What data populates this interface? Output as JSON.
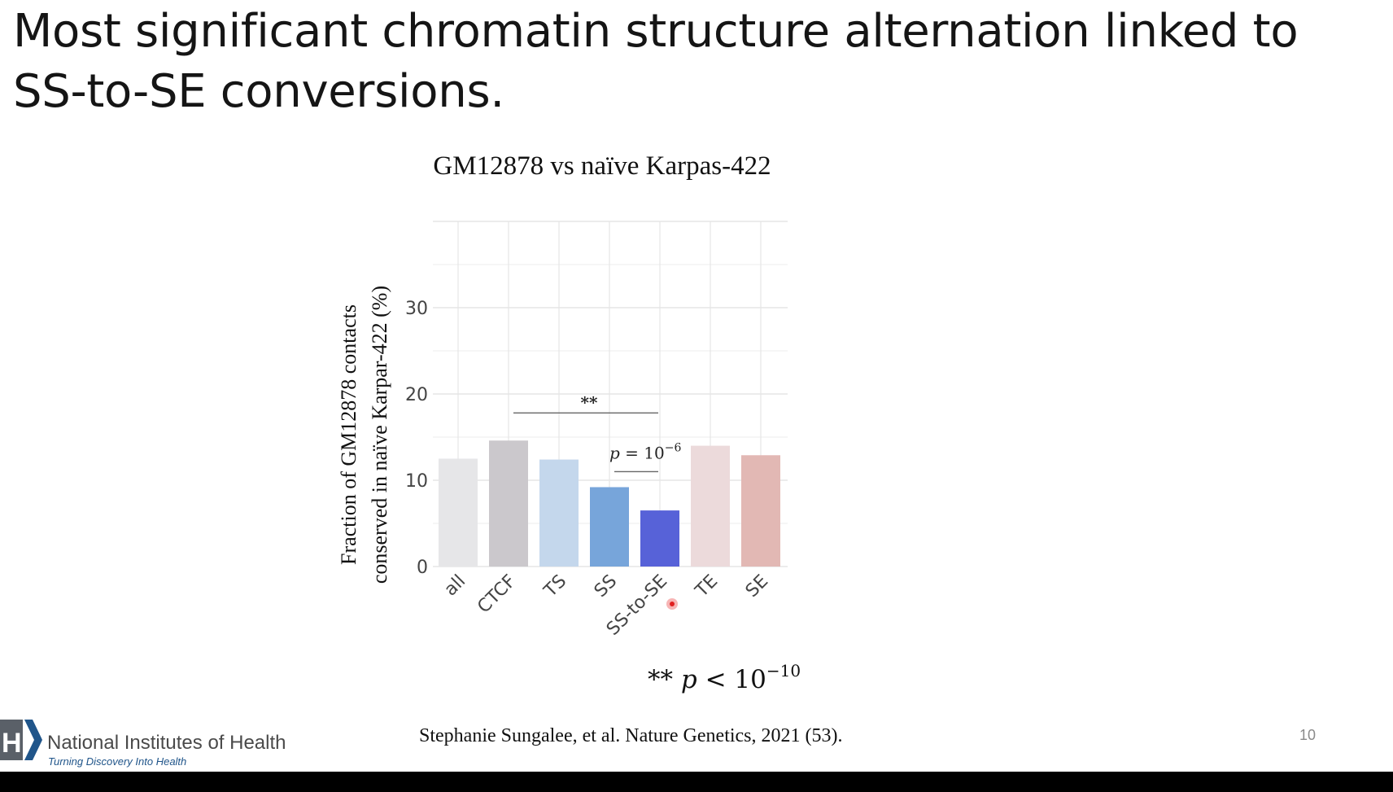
{
  "slide": {
    "title": "Most significant chromatin structure alternation linked to SS-to-SE conversions.",
    "page_number": "10",
    "citation": "Stephanie Sungalee, et al. Nature Genetics, 2021 (53).",
    "footnote": {
      "stars": "**",
      "p": "p",
      "rel": "<",
      "value": "10",
      "exponent": "−10"
    }
  },
  "logo": {
    "letter": "H",
    "name": "National Institutes of Health",
    "tagline": "Turning Discovery Into Health",
    "colors": {
      "box": "#5a6068",
      "chevron": "#20558a"
    }
  },
  "chart_data": {
    "type": "bar",
    "title": "GM12878 vs naïve Karpas-422",
    "ylabel_line1": "Fraction of GM12878 contacts",
    "ylabel_line2": "conserved in naïve Karpar-422 (%)",
    "categories": [
      "all",
      "CTCF",
      "TS",
      "SS",
      "SS-to-SE",
      "TE",
      "SE"
    ],
    "values": [
      12.5,
      14.6,
      12.4,
      9.2,
      6.5,
      14.0,
      12.9
    ],
    "colors": [
      "#e6e6e8",
      "#cbc8cc",
      "#c4d7ec",
      "#77a5da",
      "#5762d8",
      "#ecdadb",
      "#e2b8b4"
    ],
    "ylim": [
      0,
      40
    ],
    "yticks": [
      0,
      10,
      20,
      30
    ],
    "grid": true,
    "annotations": [
      {
        "from": "CTCF",
        "to": "SS-to-SE",
        "y": 17.8,
        "label": "**"
      },
      {
        "from": "SS",
        "to": "SS-to-SE",
        "y": 11,
        "label_p": "p",
        "label_eq": " = 10",
        "label_exp": "−6"
      }
    ]
  }
}
